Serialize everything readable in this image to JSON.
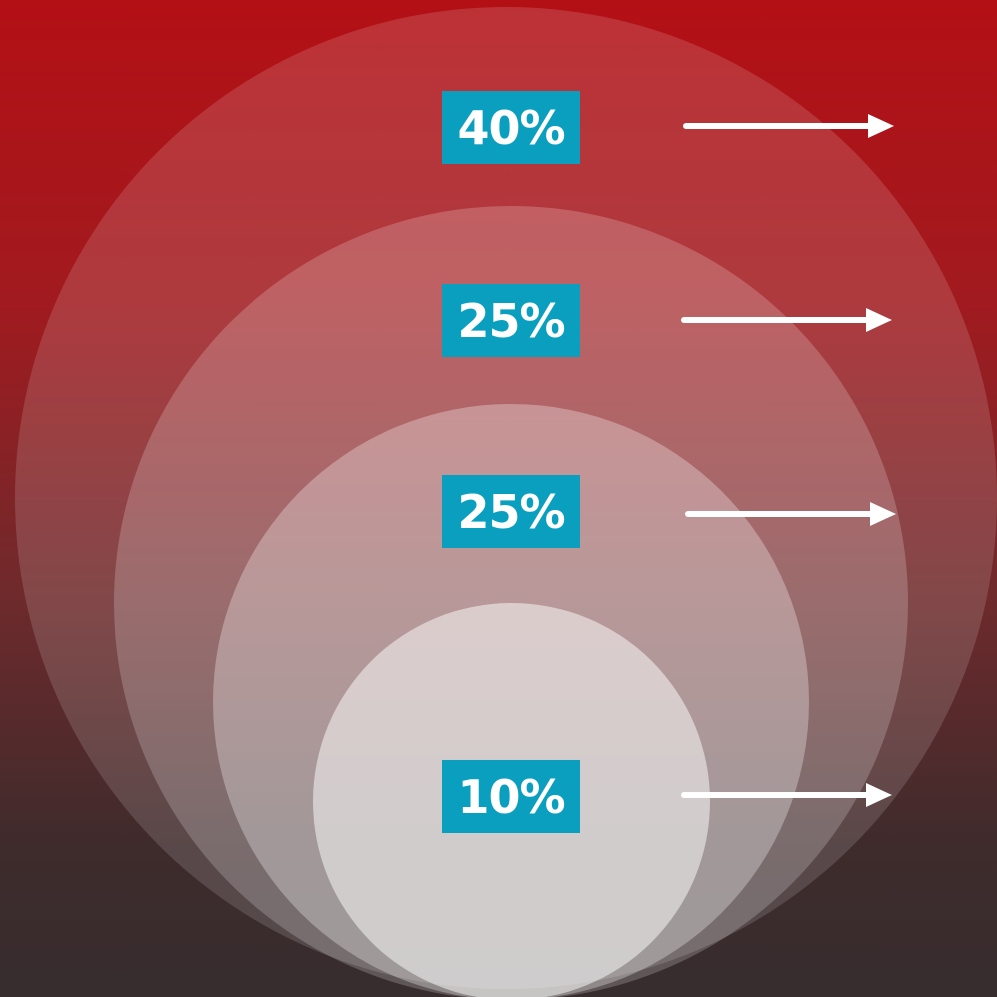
{
  "colors": {
    "badge": "#0a9fbf",
    "arrow": "#ffffff",
    "background_top": "#b31015",
    "background_bottom": "#372d2e"
  },
  "levels": [
    {
      "label": "40%",
      "value": 40
    },
    {
      "label": "25%",
      "value": 25
    },
    {
      "label": "25%",
      "value": 25
    },
    {
      "label": "10%",
      "value": 10
    }
  ],
  "arrow_icon": "right-arrow-icon"
}
